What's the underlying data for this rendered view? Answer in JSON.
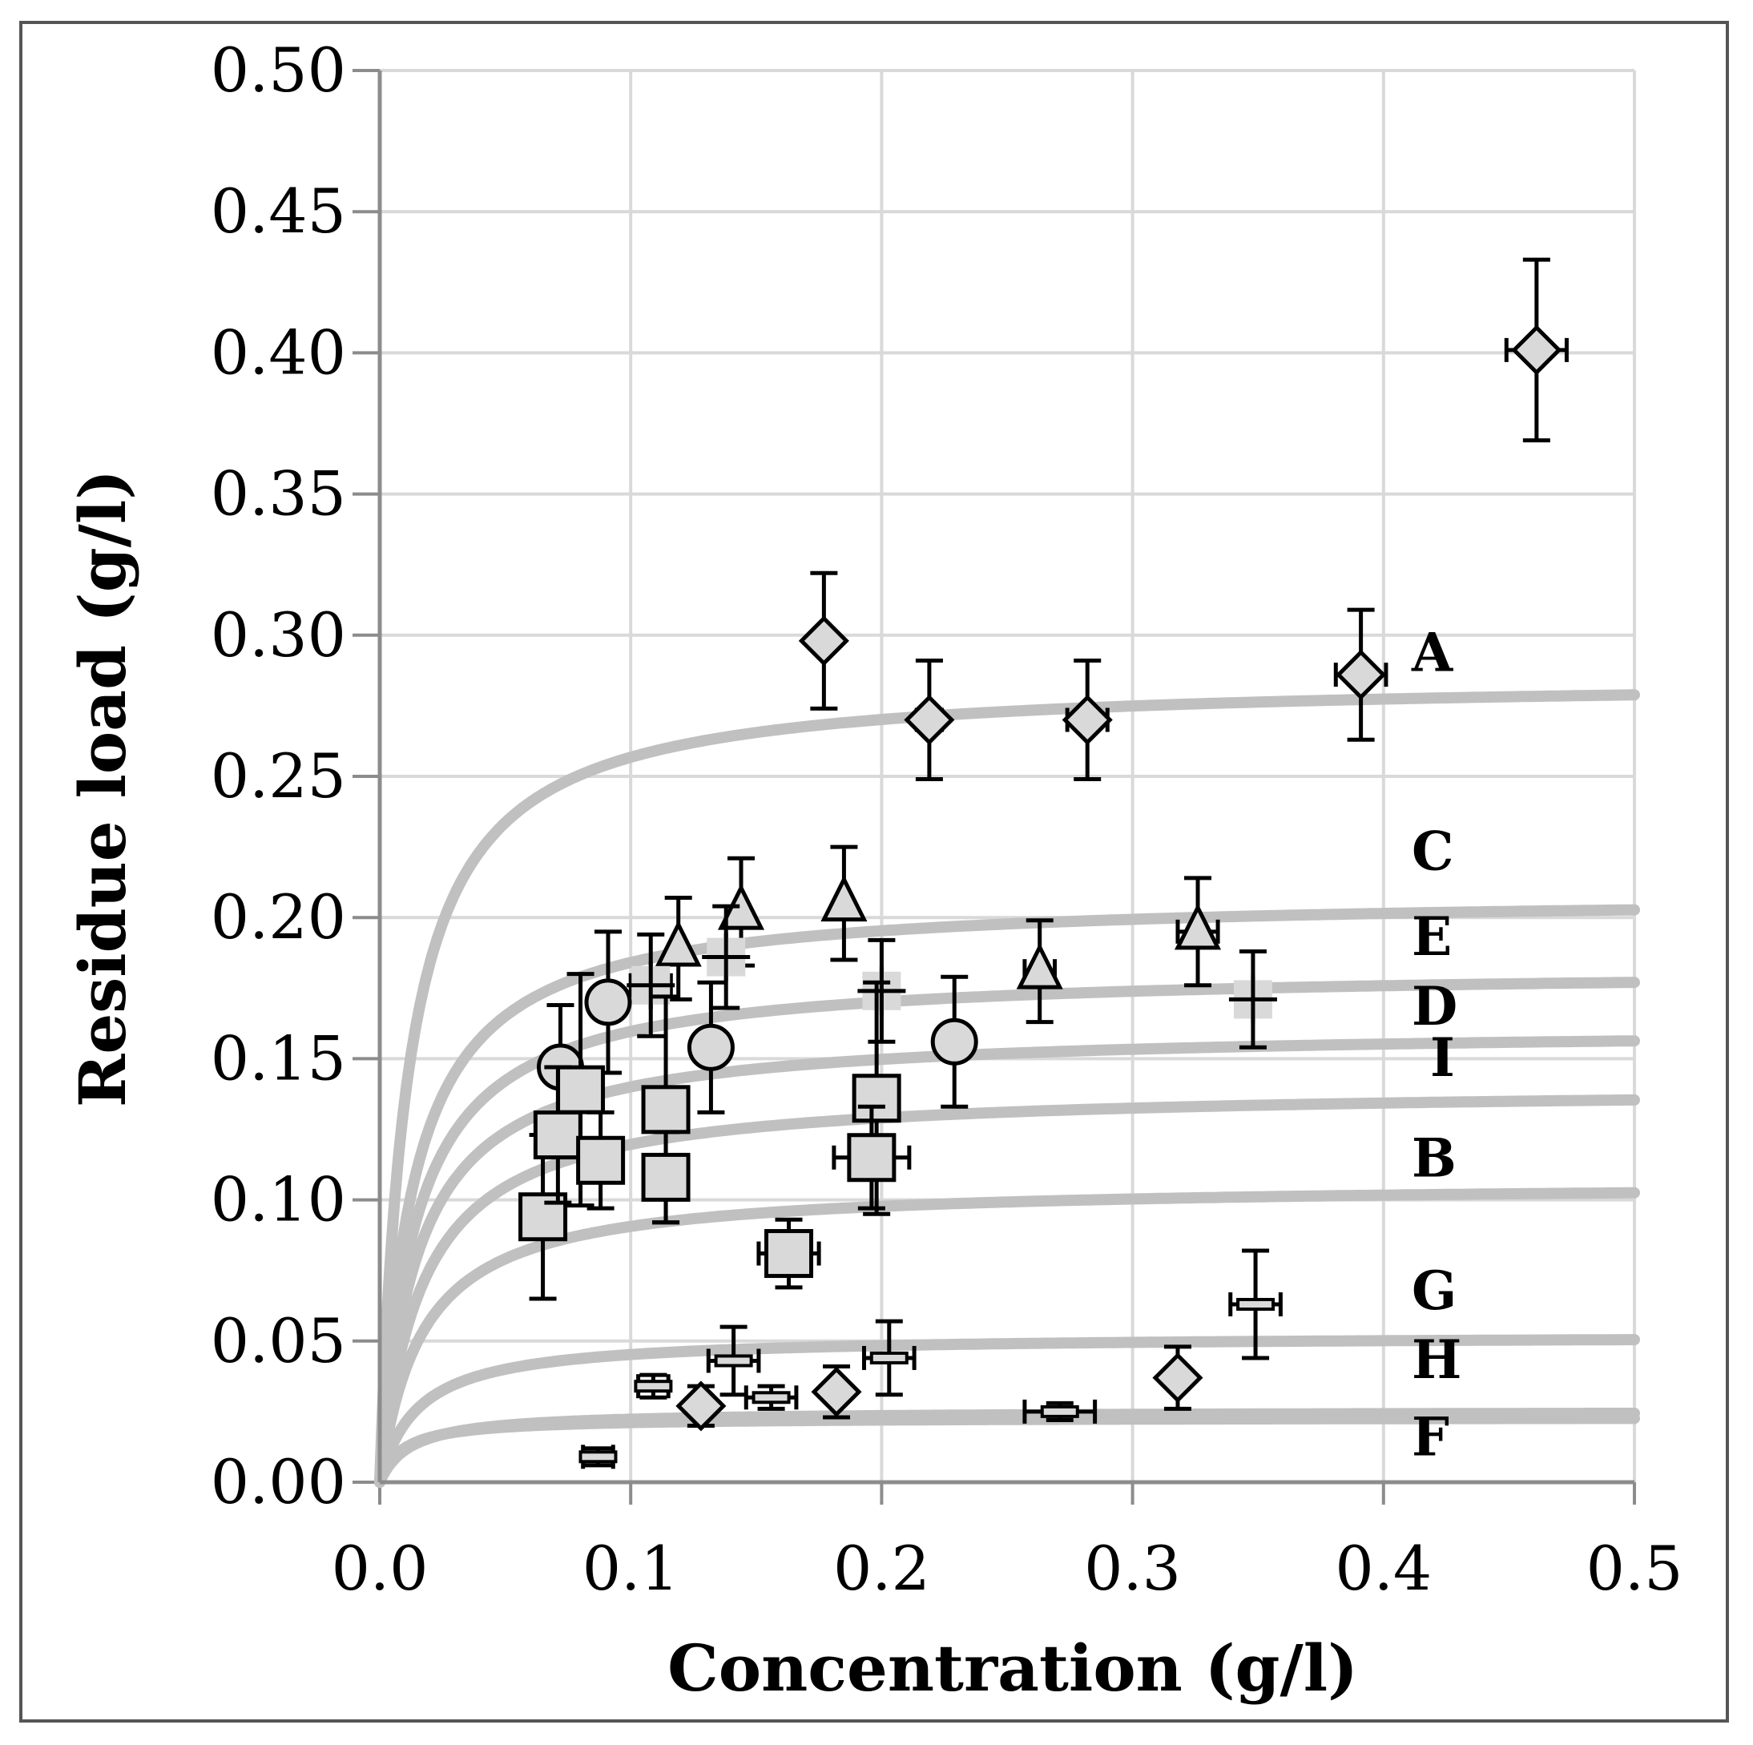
{
  "chart_data": {
    "type": "scatter",
    "title": "",
    "xlabel": "Concentration (g/l)",
    "ylabel": "Residue load (g/l)",
    "xlim": [
      0,
      0.5
    ],
    "ylim": [
      0,
      0.5
    ],
    "x_ticks": [
      "0.0",
      "0.1",
      "0.2",
      "0.3",
      "0.4",
      "0.5"
    ],
    "y_ticks": [
      "0.00",
      "0.05",
      "0.10",
      "0.15",
      "0.20",
      "0.25",
      "0.30",
      "0.35",
      "0.40",
      "0.45",
      "0.50"
    ],
    "grid": true,
    "colors": {
      "marker_fill": "#d9d9d9",
      "marker_stroke": "#000000",
      "curve": "#c0c0c0",
      "grid": "#d9d9d9",
      "axis": "#8c8c8c"
    },
    "fitted_curves": [
      {
        "label": "A",
        "qmax": 0.285,
        "k": 0.011
      },
      {
        "label": "C",
        "qmax": 0.208,
        "k": 0.013
      },
      {
        "label": "E",
        "qmax": 0.182,
        "k": 0.014
      },
      {
        "label": "D",
        "qmax": 0.161,
        "k": 0.015
      },
      {
        "label": "I",
        "qmax": 0.14,
        "k": 0.017
      },
      {
        "label": "B",
        "qmax": 0.106,
        "k": 0.017
      },
      {
        "label": "G",
        "qmax": 0.052,
        "k": 0.015
      },
      {
        "label": "H",
        "qmax": 0.025,
        "k": 0.012
      },
      {
        "label": "F",
        "qmax": 0.023,
        "k": 0.009
      }
    ],
    "series": [
      {
        "name": "diamond-high",
        "marker": "diamond",
        "points": [
          {
            "x": 0.177,
            "y": 0.298,
            "ey": 0.024,
            "ex": 0
          },
          {
            "x": 0.219,
            "y": 0.27,
            "ey": 0.021,
            "ex": 0.005
          },
          {
            "x": 0.282,
            "y": 0.27,
            "ey": 0.021,
            "ex": 0.008
          },
          {
            "x": 0.391,
            "y": 0.286,
            "ey": 0.023,
            "ex": 0.01
          },
          {
            "x": 0.461,
            "y": 0.401,
            "ey": 0.032,
            "ex": 0.012
          }
        ]
      },
      {
        "name": "triangle",
        "marker": "triangle",
        "points": [
          {
            "x": 0.119,
            "y": 0.189,
            "ey": 0.018,
            "ex": 0
          },
          {
            "x": 0.144,
            "y": 0.202,
            "ey": 0.019,
            "ex": 0
          },
          {
            "x": 0.185,
            "y": 0.205,
            "ey": 0.02,
            "ex": 0
          },
          {
            "x": 0.263,
            "y": 0.181,
            "ey": 0.018,
            "ex": 0.006
          },
          {
            "x": 0.326,
            "y": 0.195,
            "ey": 0.019,
            "ex": 0.008
          }
        ]
      },
      {
        "name": "cross",
        "marker": "cross",
        "points": [
          {
            "x": 0.108,
            "y": 0.176,
            "ey": 0.018,
            "ex": 0.008
          },
          {
            "x": 0.138,
            "y": 0.186,
            "ey": 0.018,
            "ex": 0.006
          },
          {
            "x": 0.2,
            "y": 0.174,
            "ey": 0.018,
            "ex": 0.006
          },
          {
            "x": 0.348,
            "y": 0.171,
            "ey": 0.017,
            "ex": 0.006
          }
        ]
      },
      {
        "name": "circle",
        "marker": "circle",
        "points": [
          {
            "x": 0.072,
            "y": 0.147,
            "ey": 0.022,
            "ex": 0
          },
          {
            "x": 0.091,
            "y": 0.17,
            "ey": 0.025,
            "ex": 0
          },
          {
            "x": 0.132,
            "y": 0.154,
            "ey": 0.023,
            "ex": 0
          },
          {
            "x": 0.229,
            "y": 0.156,
            "ey": 0.023,
            "ex": 0
          }
        ]
      },
      {
        "name": "square",
        "marker": "square",
        "points": [
          {
            "x": 0.065,
            "y": 0.094,
            "ey": 0.029,
            "ex": 0
          },
          {
            "x": 0.071,
            "y": 0.123,
            "ey": 0.024,
            "ex": 0
          },
          {
            "x": 0.08,
            "y": 0.139,
            "ey": 0.041,
            "ex": 0
          },
          {
            "x": 0.088,
            "y": 0.114,
            "ey": 0.017,
            "ex": 0
          },
          {
            "x": 0.114,
            "y": 0.132,
            "ey": 0.04,
            "ex": 0
          },
          {
            "x": 0.114,
            "y": 0.108,
            "ey": 0.016,
            "ex": 0
          },
          {
            "x": 0.163,
            "y": 0.081,
            "ey": 0.012,
            "ex": 0.012
          },
          {
            "x": 0.198,
            "y": 0.136,
            "ey": 0.041,
            "ex": 0
          },
          {
            "x": 0.196,
            "y": 0.115,
            "ey": 0.018,
            "ex": 0.015
          }
        ]
      },
      {
        "name": "dash",
        "marker": "dash",
        "points": [
          {
            "x": 0.087,
            "y": 0.009,
            "ey": 0.003,
            "ex": 0.006
          },
          {
            "x": 0.109,
            "y": 0.034,
            "ey": 0.004,
            "ex": 0.006
          },
          {
            "x": 0.141,
            "y": 0.043,
            "ey": 0.012,
            "ex": 0.01
          },
          {
            "x": 0.156,
            "y": 0.03,
            "ey": 0.004,
            "ex": 0.01
          },
          {
            "x": 0.203,
            "y": 0.044,
            "ey": 0.013,
            "ex": 0.01
          },
          {
            "x": 0.271,
            "y": 0.025,
            "ey": 0.003,
            "ex": 0.014
          },
          {
            "x": 0.349,
            "y": 0.063,
            "ey": 0.019,
            "ex": 0.01
          }
        ]
      },
      {
        "name": "diamond-low",
        "marker": "diamond",
        "points": [
          {
            "x": 0.128,
            "y": 0.027,
            "ey": 0.007,
            "ex": 0
          },
          {
            "x": 0.182,
            "y": 0.032,
            "ey": 0.009,
            "ex": 0
          },
          {
            "x": 0.318,
            "y": 0.037,
            "ey": 0.011,
            "ex": 0
          }
        ]
      }
    ]
  }
}
